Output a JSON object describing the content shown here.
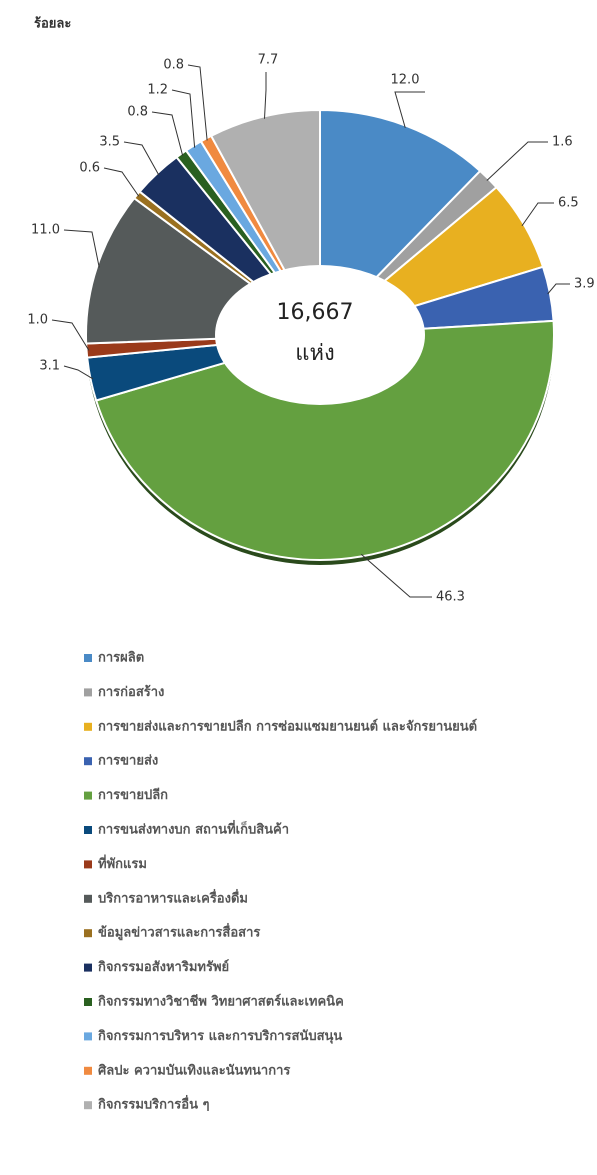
{
  "chart_data": {
    "type": "donut",
    "title": "ร้อยละ",
    "center_value": "16,667",
    "center_unit": "แห่ง",
    "categories": [
      "การผลิต",
      "การก่อสร้าง",
      "การขายส่งและการขายปลีก การซ่อมแซมยานยนต์  และจักรยานยนต์",
      "การขายส่ง",
      "การขายปลีก",
      "การขนส่งทางบก สถานที่เก็บสินค้า",
      "ที่พักแรม",
      "บริการอาหารและเครื่องดื่ม",
      "ข้อมูลข่าวสารและการสื่อสาร",
      "กิจกรรมอสังหาริมทรัพย์",
      "กิจกรรมทางวิชาชีพ วิทยาศาสตร์และเทคนิค",
      "กิจกรรมการบริหาร และการบริการสนับสนุน",
      "ศิลปะ ความบันเทิงและนันทนาการ",
      "กิจกรรมบริการอื่น ๆ"
    ],
    "values": [
      12.0,
      1.6,
      6.5,
      3.9,
      46.3,
      3.1,
      1.0,
      11.0,
      0.6,
      3.5,
      0.8,
      1.2,
      0.8,
      7.7
    ],
    "value_labels": [
      "12.0",
      "1.6",
      "6.5",
      "3.9",
      "46.3",
      "3.1",
      "1.0",
      "11.0",
      "0.6",
      "3.5",
      "0.8",
      "1.2",
      "0.8",
      "7.7"
    ],
    "colors": [
      "#4a8ac6",
      "#a0a0a0",
      "#e8b020",
      "#3a62b0",
      "#64a040",
      "#0a4a7c",
      "#9a3a1a",
      "#555a5a",
      "#9a7020",
      "#1a3060",
      "#2a6020",
      "#6aa8e0",
      "#f08a40",
      "#b0b0b0"
    ]
  }
}
